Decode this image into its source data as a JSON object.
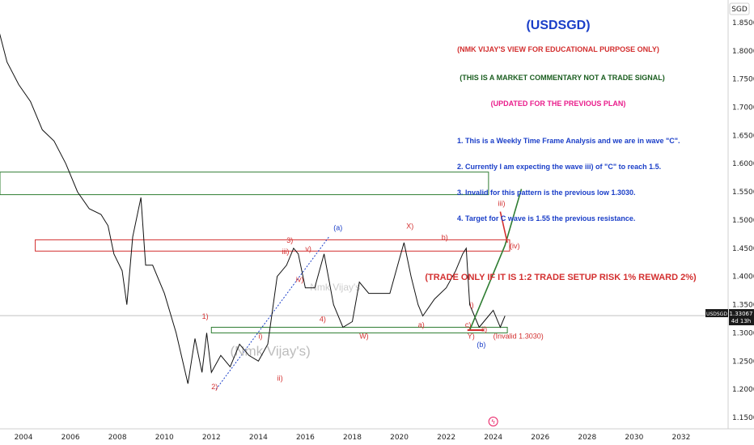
{
  "chart_data": {
    "type": "line",
    "symbol": "SGD",
    "title": "(USDSGD)",
    "lines": [
      "(NMK VIJAY'S VIEW FOR EDUCATIONAL PURPOSE ONLY)",
      "(THIS IS A MARKET COMMENTARY NOT A TRADE SIGNAL)",
      "(UPDATED FOR THE PREVIOUS PLAN)",
      "1. This is a Weekly Time Frame Analysis and we are in wave \"C\".",
      "2. Currently I am expecting the wave iii) of \"C\" to reach 1.5.",
      "3. Invalid for this pattern is the previous low 1.3030.",
      "4. Target for C wave is 1.55 the previous resistance.",
      "(TRADE ONLY IF IT IS 1:2 TRADE SETUP RISK 1% REWARD 2%)"
    ],
    "line_colors": [
      "#d32f2f",
      "#1b5e20",
      "#e91e8c",
      "#1a3ec8",
      "#1a3ec8",
      "#1a3ec8",
      "#1a3ec8",
      "#d32f2f"
    ],
    "x_ticks": [
      "2004",
      "2006",
      "2008",
      "2010",
      "2012",
      "2014",
      "2016",
      "2018",
      "2020",
      "2022",
      "2024",
      "2026",
      "2028",
      "2030",
      "2032"
    ],
    "y_ticks": [
      "1.85000",
      "1.80000",
      "1.75000",
      "1.70000",
      "1.65000",
      "1.60000",
      "1.55000",
      "1.50000",
      "1.45000",
      "1.40000",
      "1.35000",
      "1.30000",
      "1.25000",
      "1.20000",
      "1.15000"
    ],
    "xlim": [
      2003.0,
      2034.0
    ],
    "ylim": [
      1.13,
      1.89
    ],
    "price_tag": {
      "symbol": "USDSGD",
      "price": "1.33067",
      "countdown": "4d 13h",
      "value": 1.3307
    },
    "watermarks": [
      "(Nmk Vijay's)",
      "Nmk Vijay's"
    ],
    "series": [
      {
        "x": [
          2002.8,
          2003.3,
          2003.8,
          2004.3,
          2004.8,
          2005.3,
          2005.8,
          2006.3,
          2006.8,
          2007.3,
          2007.6,
          2007.85,
          2008.2,
          2008.4,
          2008.65,
          2009.0,
          2009.2,
          2009.5,
          2010.0,
          2010.5,
          2011.0,
          2011.3,
          2011.6,
          2011.8,
          2012.0,
          2012.4,
          2012.8,
          2013.2,
          2013.6,
          2014.0,
          2014.4,
          2014.8,
          2015.2,
          2015.5,
          2015.7,
          2016.0,
          2016.4,
          2016.8,
          2017.2,
          2017.6,
          2018.0,
          2018.3,
          2018.7,
          2019.1,
          2019.6,
          2020.0,
          2020.2,
          2020.5,
          2020.8,
          2021.0,
          2021.5,
          2022.0,
          2022.4,
          2022.7,
          2022.85,
          2023.0,
          2023.4,
          2023.8,
          2024.0,
          2024.3,
          2024.5
        ],
        "y": [
          1.86,
          1.78,
          1.74,
          1.71,
          1.66,
          1.64,
          1.6,
          1.55,
          1.52,
          1.51,
          1.49,
          1.44,
          1.41,
          1.35,
          1.47,
          1.54,
          1.42,
          1.42,
          1.37,
          1.3,
          1.21,
          1.29,
          1.23,
          1.3,
          1.23,
          1.26,
          1.24,
          1.28,
          1.26,
          1.25,
          1.28,
          1.4,
          1.42,
          1.45,
          1.44,
          1.38,
          1.38,
          1.44,
          1.35,
          1.31,
          1.32,
          1.39,
          1.37,
          1.37,
          1.37,
          1.43,
          1.46,
          1.4,
          1.35,
          1.33,
          1.36,
          1.38,
          1.41,
          1.44,
          1.45,
          1.35,
          1.31,
          1.33,
          1.34,
          1.31,
          1.33
        ],
        "color": "#111111"
      }
    ],
    "zones": [
      {
        "y_top": 1.585,
        "y_bottom": 1.545,
        "x_start": 2003.0,
        "x_end": 2023.8,
        "color": "#2e7d32"
      },
      {
        "y_top": 1.465,
        "y_bottom": 1.445,
        "x_start": 2004.5,
        "x_end": 2024.7,
        "color": "#d32f2f"
      },
      {
        "y_top": 1.31,
        "y_bottom": 1.3,
        "x_start": 2012.0,
        "x_end": 2024.6,
        "color": "#2e7d32"
      }
    ],
    "wave_labels": [
      {
        "text": "1)",
        "x": 2011.6,
        "y": 1.325,
        "color": "#d32f2f"
      },
      {
        "text": "2)",
        "x": 2012.0,
        "y": 1.2,
        "color": "#d32f2f"
      },
      {
        "text": "i)",
        "x": 2014.0,
        "y": 1.29,
        "color": "#d32f2f"
      },
      {
        "text": "ii)",
        "x": 2014.8,
        "y": 1.215,
        "color": "#d32f2f"
      },
      {
        "text": "3)",
        "x": 2015.2,
        "y": 1.46,
        "color": "#d32f2f"
      },
      {
        "text": "iii)",
        "x": 2015.0,
        "y": 1.44,
        "color": "#d32f2f"
      },
      {
        "text": "iv)",
        "x": 2015.6,
        "y": 1.39,
        "color": "#d32f2f"
      },
      {
        "text": "v)",
        "x": 2016.0,
        "y": 1.445,
        "color": "#d32f2f"
      },
      {
        "text": "4)",
        "x": 2016.6,
        "y": 1.32,
        "color": "#d32f2f"
      },
      {
        "text": "(a)",
        "x": 2017.2,
        "y": 1.482,
        "color": "#1a3ec8"
      },
      {
        "text": "W)",
        "x": 2018.3,
        "y": 1.29,
        "color": "#d32f2f"
      },
      {
        "text": "X)",
        "x": 2020.3,
        "y": 1.485,
        "color": "#d32f2f"
      },
      {
        "text": "a)",
        "x": 2020.8,
        "y": 1.31,
        "color": "#d32f2f"
      },
      {
        "text": "b)",
        "x": 2021.8,
        "y": 1.465,
        "color": "#d32f2f"
      },
      {
        "text": "c)",
        "x": 2022.8,
        "y": 1.31,
        "color": "#d32f2f"
      },
      {
        "text": "Y)",
        "x": 2022.9,
        "y": 1.29,
        "color": "#d32f2f"
      },
      {
        "text": "(b)",
        "x": 2023.3,
        "y": 1.275,
        "color": "#1a3ec8"
      },
      {
        "text": "i)",
        "x": 2023.0,
        "y": 1.345,
        "color": "#d32f2f"
      },
      {
        "text": "ii)",
        "x": 2023.5,
        "y": 1.302,
        "color": "#d32f2f"
      },
      {
        "text": "iii)",
        "x": 2024.2,
        "y": 1.525,
        "color": "#d32f2f"
      },
      {
        "text": "(iv)",
        "x": 2024.7,
        "y": 1.45,
        "color": "#d32f2f"
      },
      {
        "text": "(Invalid 1.3030)",
        "x": 2024.0,
        "y": 1.29,
        "color": "#d32f2f"
      }
    ],
    "projection_green": [
      [
        2023.0,
        1.305
      ],
      [
        2024.5,
        1.455
      ],
      [
        2025.2,
        1.555
      ]
    ],
    "projection_red": [
      [
        2024.3,
        1.515
      ],
      [
        2024.6,
        1.46
      ]
    ],
    "channel_blue": [
      [
        2012.2,
        1.2
      ],
      [
        2017.0,
        1.47
      ]
    ],
    "marker_year": 2024.0
  }
}
